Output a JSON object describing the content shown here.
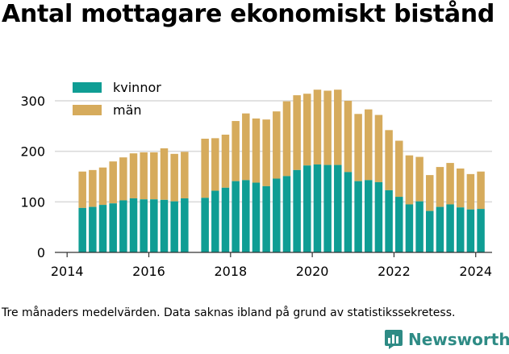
{
  "title": "Antal mottagare ekonomiskt bistånd",
  "footnote": "Tre månaders medelvärden. Data saknas ibland på grund av statistikssekretess.",
  "brand": {
    "name": "Newsworthy",
    "icon": "bar-chart-logo-icon",
    "color": "#2e8b85"
  },
  "colors": {
    "kvinnor": "#0f9d94",
    "man": "#d6ab5c",
    "grid": "#d9d9d9",
    "axis": "#333333"
  },
  "chart_data": {
    "type": "bar",
    "stacked": true,
    "title": "Antal mottagare ekonomiskt bistånd",
    "xlabel": "",
    "ylabel": "",
    "ylim": [
      0,
      330
    ],
    "xlim": [
      2013.7,
      2024.4
    ],
    "yticks": [
      0,
      100,
      200,
      300
    ],
    "xticks": [
      2014,
      2016,
      2018,
      2020,
      2022,
      2024
    ],
    "grid": true,
    "legend": "top-left",
    "x": [
      2014.375,
      2014.625,
      2014.875,
      2015.125,
      2015.375,
      2015.625,
      2015.875,
      2016.125,
      2016.375,
      2016.625,
      2016.875,
      2017.375,
      2017.625,
      2017.875,
      2018.125,
      2018.375,
      2018.625,
      2018.875,
      2019.125,
      2019.375,
      2019.625,
      2019.875,
      2020.125,
      2020.375,
      2020.625,
      2020.875,
      2021.125,
      2021.375,
      2021.625,
      2021.875,
      2022.125,
      2022.375,
      2022.625,
      2022.875,
      2023.125,
      2023.375,
      2023.625,
      2023.875,
      2024.125
    ],
    "series": [
      {
        "name": "kvinnor",
        "values": [
          88,
          90,
          94,
          97,
          103,
          107,
          105,
          105,
          104,
          101,
          107,
          108,
          122,
          128,
          141,
          143,
          138,
          131,
          146,
          151,
          163,
          172,
          174,
          173,
          173,
          159,
          141,
          143,
          139,
          123,
          110,
          95,
          101,
          82,
          90,
          95,
          89,
          85,
          86
        ]
      },
      {
        "name": "män",
        "values": [
          72,
          73,
          74,
          83,
          85,
          89,
          93,
          93,
          102,
          94,
          92,
          117,
          104,
          105,
          119,
          132,
          127,
          132,
          133,
          148,
          148,
          142,
          148,
          147,
          149,
          141,
          133,
          140,
          133,
          119,
          111,
          97,
          88,
          71,
          79,
          82,
          77,
          70,
          74
        ]
      }
    ]
  }
}
